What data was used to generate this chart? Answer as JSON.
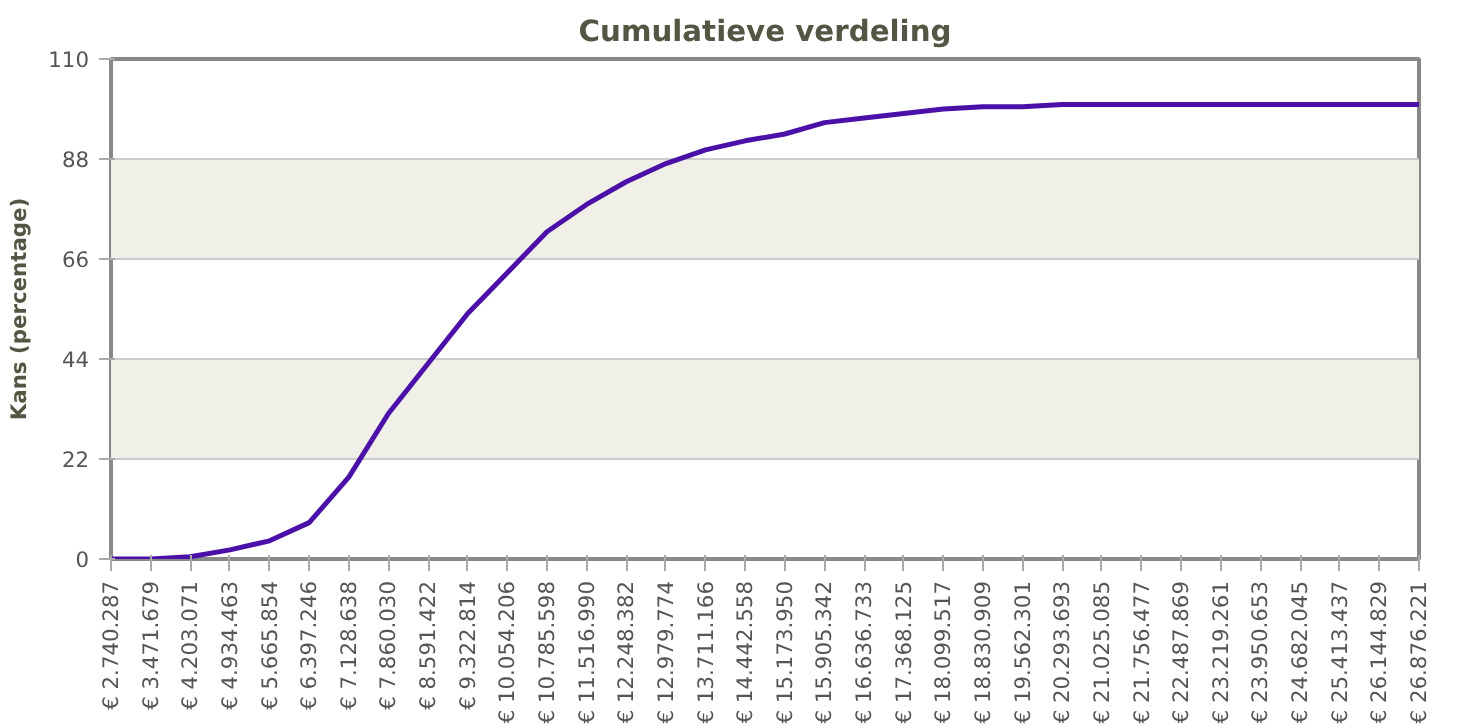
{
  "chart_data": {
    "type": "line",
    "title": "Cumulatieve verdeling",
    "ylabel": "Kans (percentage)",
    "categories": [
      "€ 2.740.287",
      "€ 3.471.679",
      "€ 4.203.071",
      "€ 4.934.463",
      "€ 5.665.854",
      "€ 6.397.246",
      "€ 7.128.638",
      "€ 7.860.030",
      "€ 8.591.422",
      "€ 9.322.814",
      "€ 10.054.206",
      "€ 10.785.598",
      "€ 11.516.990",
      "€ 12.248.382",
      "€ 12.979.774",
      "€ 13.711.166",
      "€ 14.442.558",
      "€ 15.173.950",
      "€ 15.905.342",
      "€ 16.636.733",
      "€ 17.368.125",
      "€ 18.099.517",
      "€ 18.830.909",
      "€ 19.562.301",
      "€ 20.293.693",
      "€ 21.025.085",
      "€ 21.756.477",
      "€ 22.487.869",
      "€ 23.219.261",
      "€ 23.950.653",
      "€ 24.682.045",
      "€ 25.413.437",
      "€ 26.144.829",
      "€ 26.876.221"
    ],
    "series": [
      {
        "color": "#4b10a8",
        "values": [
          0,
          0,
          0.5,
          2,
          4,
          8,
          18,
          32,
          43,
          54,
          63,
          72,
          78,
          83,
          87,
          90,
          92,
          93.5,
          96,
          97,
          98,
          99,
          99.5,
          99.5,
          100,
          100,
          100,
          100,
          100,
          100,
          100,
          100,
          100,
          100
        ]
      }
    ],
    "ylim": [
      0,
      110
    ],
    "yticks": [
      0,
      22,
      44,
      66,
      88,
      110
    ],
    "grid": "y",
    "line_style": "solid"
  }
}
